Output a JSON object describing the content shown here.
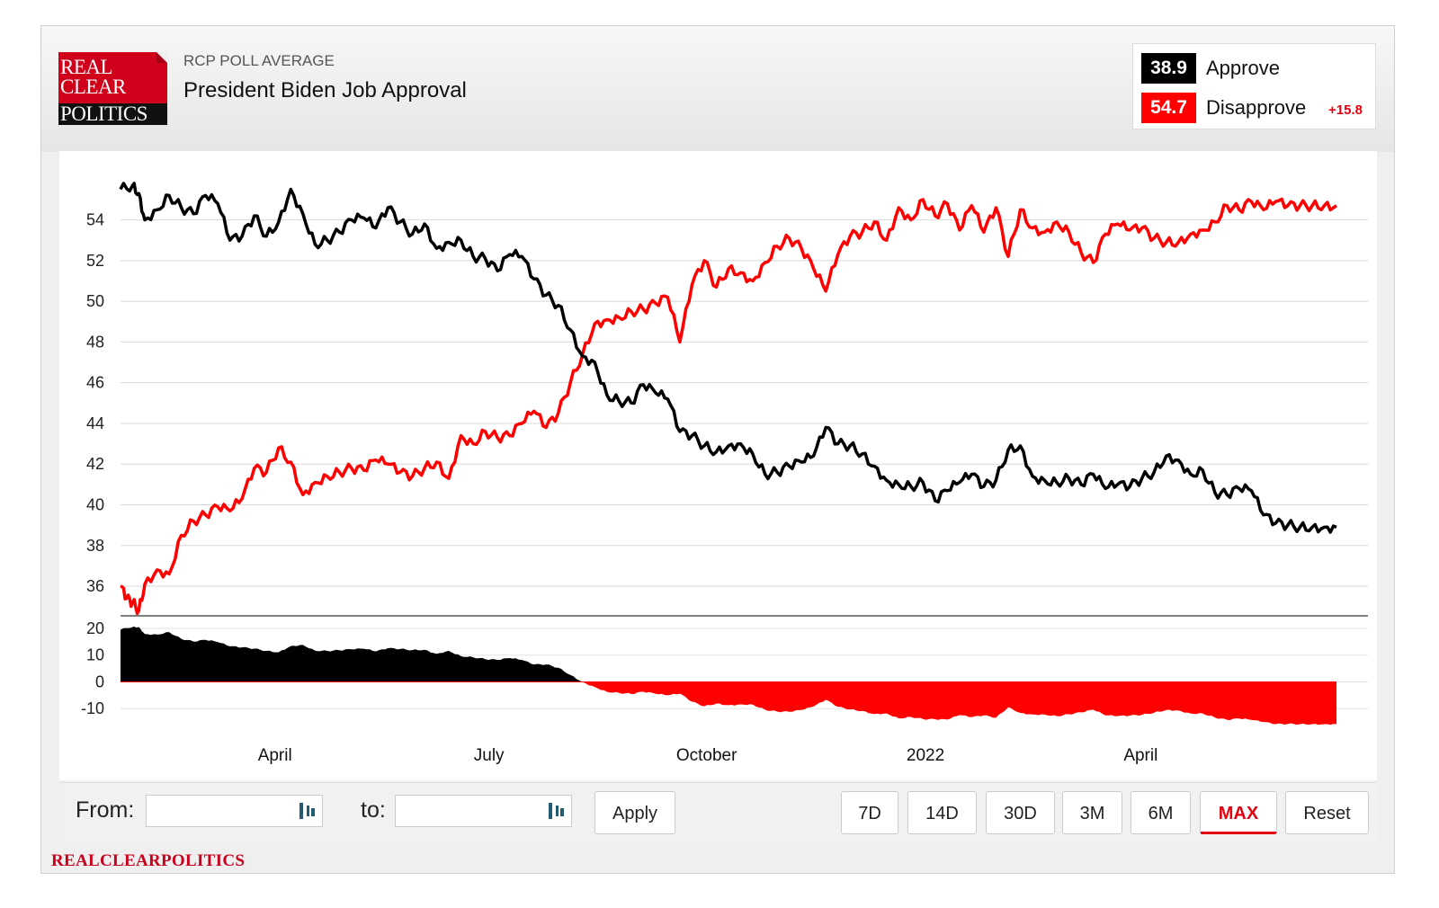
{
  "header": {
    "logo_lines": [
      "REAL",
      "CLEAR",
      "POLITICS"
    ],
    "kicker": "RCP POLL AVERAGE",
    "title": "President Biden Job Approval"
  },
  "legend": {
    "approve": {
      "value": "38.9",
      "label": "Approve",
      "color": "#000000"
    },
    "disapprove": {
      "value": "54.7",
      "label": "Disapprove",
      "color": "#ff0000"
    },
    "spread": "+15.8"
  },
  "controls": {
    "from_label": "From:",
    "to_label": "to:",
    "apply_label": "Apply",
    "ranges": [
      "7D",
      "14D",
      "30D",
      "3M",
      "6M",
      "MAX"
    ],
    "active_range": "MAX",
    "reset_label": "Reset"
  },
  "footer": {
    "brand": "REALCLEARPOLITICS"
  },
  "chart_data": {
    "type": "line",
    "title": "President Biden Job Approval",
    "x_tick_labels": [
      "April",
      "July",
      "October",
      "2022",
      "April"
    ],
    "main_y_ticks": [
      36,
      38,
      40,
      42,
      44,
      46,
      48,
      50,
      52,
      54
    ],
    "main_ylim": [
      34.5,
      56.5
    ],
    "spread_y_ticks": [
      20,
      10,
      0,
      -10
    ],
    "spread_ylim": [
      -20,
      21
    ],
    "x_domain": [
      0,
      100
    ],
    "tick_positions": [
      12.7,
      30.3,
      48.2,
      66.2,
      83.9
    ],
    "series": [
      {
        "name": "Approve",
        "color": "#000000",
        "x": [
          0,
          1,
          1.5,
          2,
          3,
          4,
          5,
          6,
          7,
          8,
          9,
          10,
          11,
          12,
          13,
          14,
          15,
          16,
          17,
          18,
          19,
          20,
          21,
          22,
          23,
          24,
          25,
          26,
          27,
          28,
          29,
          30,
          31,
          32,
          33,
          34,
          35,
          36,
          37,
          38,
          39,
          40,
          41,
          42,
          43,
          44,
          45,
          46,
          47,
          48,
          49,
          50,
          51,
          52,
          53,
          54,
          55,
          56,
          57,
          58,
          59,
          60,
          61,
          62,
          63,
          64,
          65,
          66,
          67,
          68,
          69,
          70,
          71,
          72,
          73,
          74,
          75,
          76,
          77,
          78,
          79,
          80,
          81,
          82,
          83,
          84,
          85,
          86,
          87,
          88,
          89,
          90,
          91,
          92,
          93,
          94,
          95,
          96,
          97,
          98,
          99,
          100
        ],
        "values": [
          55.5,
          55.7,
          55.3,
          54.0,
          54.5,
          55.2,
          54.6,
          54.3,
          55.2,
          54.8,
          53.0,
          53.2,
          54.2,
          53.2,
          53.9,
          55.5,
          54.3,
          52.8,
          53.0,
          53.4,
          54.0,
          54.1,
          53.6,
          54.6,
          53.9,
          53.3,
          53.8,
          52.6,
          52.9,
          53.0,
          52.2,
          52.1,
          51.5,
          52.3,
          52.2,
          51.1,
          50.3,
          49.8,
          48.6,
          47.3,
          47.0,
          45.4,
          45.1,
          45.0,
          45.9,
          45.5,
          45.2,
          43.6,
          43.4,
          42.9,
          42.6,
          42.9,
          43.0,
          42.5,
          41.5,
          41.6,
          41.9,
          42.1,
          42.4,
          43.8,
          43.0,
          42.9,
          42.5,
          41.9,
          41.2,
          41.0,
          40.9,
          41.1,
          40.2,
          40.7,
          41.1,
          41.5,
          40.9,
          41.2,
          42.7,
          42.9,
          41.4,
          41.2,
          41.1,
          41.3,
          41.0,
          41.5,
          40.8,
          41.0,
          40.9,
          41.3,
          41.6,
          42.4,
          42.2,
          41.5,
          41.7,
          40.6,
          40.5,
          40.8,
          40.7,
          39.5,
          39.1,
          39.0,
          38.9,
          38.9,
          38.9,
          38.9
        ]
      },
      {
        "name": "Disapprove",
        "color": "#ff0000",
        "x": [
          0,
          0.5,
          1,
          1.5,
          2,
          3,
          4,
          5,
          6,
          7,
          8,
          9,
          10,
          11,
          12,
          13,
          14,
          15,
          16,
          17,
          18,
          19,
          20,
          21,
          22,
          23,
          24,
          25,
          26,
          27,
          28,
          29,
          30,
          31,
          32,
          33,
          34,
          35,
          36,
          37,
          38,
          39,
          40,
          41,
          42,
          43,
          44,
          45,
          46,
          47,
          48,
          49,
          50,
          51,
          52,
          53,
          54,
          55,
          56,
          57,
          58,
          59,
          60,
          61,
          62,
          63,
          64,
          65,
          66,
          67,
          68,
          69,
          70,
          71,
          72,
          73,
          74,
          75,
          76,
          77,
          78,
          79,
          80,
          81,
          82,
          83,
          84,
          85,
          86,
          87,
          88,
          89,
          90,
          91,
          92,
          93,
          94,
          95,
          96,
          97,
          98,
          99,
          100
        ],
        "values": [
          36.0,
          35.4,
          35.2,
          34.8,
          36.1,
          36.8,
          36.6,
          38.5,
          39.2,
          39.5,
          39.9,
          39.7,
          40.3,
          41.8,
          41.6,
          42.8,
          42.1,
          40.5,
          41.1,
          41.4,
          41.6,
          41.8,
          41.7,
          42.2,
          42.0,
          41.6,
          41.4,
          41.8,
          42.1,
          41.3,
          43.4,
          43.0,
          43.6,
          43.3,
          43.4,
          44.0,
          44.6,
          43.8,
          44.5,
          46.0,
          47.4,
          48.9,
          49.1,
          49.2,
          49.5,
          49.6,
          49.9,
          50.2,
          48.0,
          50.8,
          52.0,
          50.7,
          51.6,
          51.4,
          51.0,
          51.9,
          52.7,
          53.1,
          52.6,
          51.6,
          50.5,
          52.3,
          53.2,
          53.4,
          53.9,
          53.0,
          54.6,
          54.0,
          55.0,
          54.2,
          54.8,
          53.5,
          54.7,
          53.4,
          54.6,
          52.2,
          54.5,
          53.6,
          53.4,
          53.9,
          53.4,
          52.4,
          51.9,
          53.3,
          53.8,
          53.5,
          53.6,
          53.1,
          52.9,
          52.9,
          53.3,
          53.5,
          53.9,
          54.7,
          54.5,
          54.9,
          54.5,
          54.9,
          54.7,
          54.7,
          54.7,
          54.7,
          54.7
        ]
      }
    ],
    "spread_note": "Lower panel shows Approve minus Disapprove spread (positive black, negative red)"
  }
}
